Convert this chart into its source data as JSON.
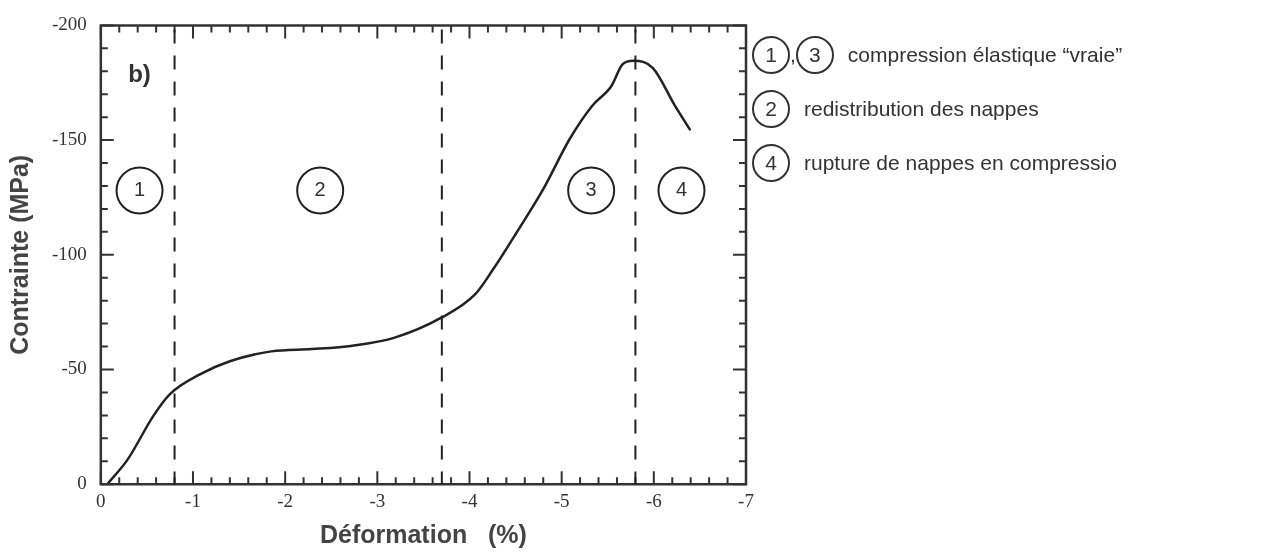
{
  "chart_data": {
    "type": "line",
    "xlabel": "Déformation   (%)",
    "ylabel": "Contrainte (MPa)",
    "xlim": [
      0,
      -7
    ],
    "ylim": [
      0,
      -200
    ],
    "xticks": [
      0,
      {
        "value": -0.2,
        "label": null
      },
      {
        "value": -0.4,
        "label": null
      },
      {
        "value": -0.6,
        "label": null
      },
      {
        "value": -0.8,
        "label": null
      },
      -1,
      {
        "value": -1.2,
        "label": null
      },
      {
        "value": -1.4,
        "label": null
      },
      {
        "value": -1.6,
        "label": null
      },
      {
        "value": -1.8,
        "label": null
      },
      -2,
      {
        "value": -2.2,
        "label": null
      },
      {
        "value": -2.4,
        "label": null
      },
      {
        "value": -2.6,
        "label": null
      },
      {
        "value": -2.8,
        "label": null
      },
      -3,
      {
        "value": -3.2,
        "label": null
      },
      {
        "value": -3.4,
        "label": null
      },
      {
        "value": -3.6,
        "label": null
      },
      {
        "value": -3.8,
        "label": null
      },
      -4,
      {
        "value": -4.2,
        "label": null
      },
      {
        "value": -4.4,
        "label": null
      },
      {
        "value": -4.6,
        "label": null
      },
      {
        "value": -4.8,
        "label": null
      },
      -5,
      {
        "value": -5.2,
        "label": null
      },
      {
        "value": -5.4,
        "label": null
      },
      {
        "value": -5.6,
        "label": null
      },
      {
        "value": -5.8,
        "label": null
      },
      -6,
      {
        "value": -6.2,
        "label": null
      },
      {
        "value": -6.4,
        "label": null
      },
      {
        "value": -6.6,
        "label": null
      },
      {
        "value": -6.8,
        "label": null
      },
      -7
    ],
    "yticks": [
      0,
      {
        "value": -10,
        "label": null
      },
      {
        "value": -20,
        "label": null
      },
      {
        "value": -30,
        "label": null
      },
      {
        "value": -40,
        "label": null
      },
      -50,
      {
        "value": -60,
        "label": null
      },
      {
        "value": -70,
        "label": null
      },
      {
        "value": -80,
        "label": null
      },
      {
        "value": -90,
        "label": null
      },
      -100,
      {
        "value": -110,
        "label": null
      },
      {
        "value": -120,
        "label": null
      },
      {
        "value": -130,
        "label": null
      },
      {
        "value": -140,
        "label": null
      },
      -150,
      {
        "value": -160,
        "label": null
      },
      {
        "value": -170,
        "label": null
      },
      {
        "value": -180,
        "label": null
      },
      {
        "value": -190,
        "label": null
      },
      -200
    ],
    "grid": false,
    "legend": false,
    "marker": "none",
    "line_style": "solid",
    "series": [
      {
        "color": "#222222",
        "x": [
          -0.07,
          -0.29,
          -0.57,
          -0.75,
          -1.07,
          -1.4,
          -1.85,
          -2.29,
          -2.73,
          -3.18,
          -3.7,
          -4.06,
          -4.26,
          -4.51,
          -4.8,
          -5.09,
          -5.33,
          -5.54,
          -5.66,
          -5.78,
          -5.99,
          -6.23,
          -6.39
        ],
        "values": [
          0,
          -10.7,
          -29.8,
          -39.3,
          -47.8,
          -53.6,
          -57.9,
          -58.9,
          -60.4,
          -63.8,
          -72.7,
          -82.7,
          -93.9,
          -109.6,
          -128.6,
          -150.7,
          -164.9,
          -173.6,
          -183,
          -184.6,
          -181.4,
          -164.9,
          -154.7
        ]
      }
    ],
    "ref_lines": [
      {
        "axis": "x",
        "value": -0.8,
        "line_style": "dashed",
        "color": "#222222"
      },
      {
        "axis": "x",
        "value": -3.7,
        "line_style": "dashed",
        "color": "#222222"
      },
      {
        "axis": "x",
        "value": -5.8,
        "line_style": "dashed",
        "color": "#222222"
      }
    ],
    "annotations": [
      "b)",
      "1",
      "2",
      "3",
      "4",
      "1",
      ",",
      "3",
      "compression élastique “vraie”",
      "2",
      "redistribution des nappes",
      "4",
      "rupture de nappes en compressio"
    ]
  }
}
